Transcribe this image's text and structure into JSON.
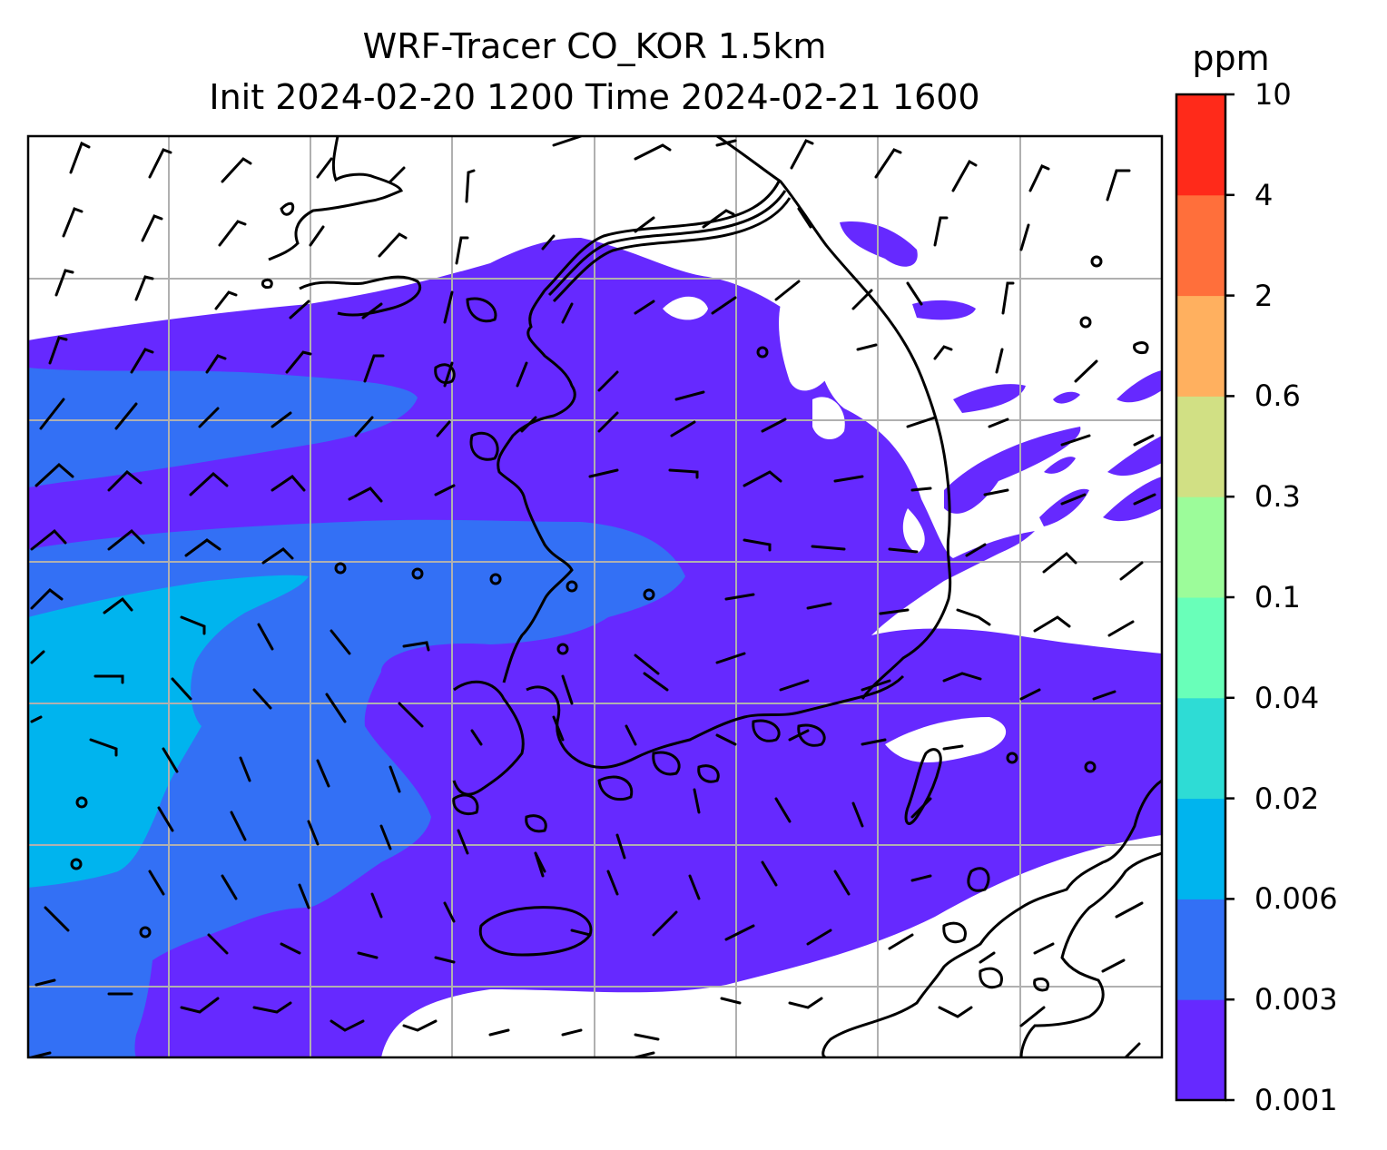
{
  "title": {
    "line1": "WRF-Tracer CO_KOR 1.5km",
    "line2": "Init 2024-02-20 1200 Time 2024-02-21 1600"
  },
  "colorbar": {
    "unit": "ppm",
    "levels": [
      "0.001",
      "0.003",
      "0.006",
      "0.02",
      "0.04",
      "0.1",
      "0.3",
      "0.6",
      "2",
      "4",
      "10"
    ],
    "colors": [
      "#6629ff",
      "#3370f5",
      "#00b4ee",
      "#2edcd5",
      "#69ffb9",
      "#9cfc9a",
      "#d1e084",
      "#ffb05f",
      "#ff6f3b",
      "#ff2a1a"
    ]
  },
  "map": {
    "overlays": [
      "filled-contours",
      "wind-barbs",
      "coastlines",
      "gridlines"
    ]
  }
}
